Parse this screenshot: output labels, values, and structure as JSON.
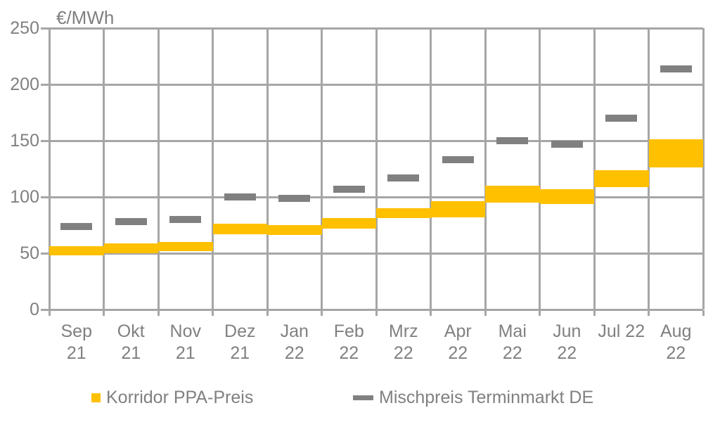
{
  "chart_data": {
    "type": "range-bar",
    "title": "",
    "ylabel": "€/MWh",
    "xlabel": "",
    "ylim": [
      0,
      250
    ],
    "yticks": [
      0,
      50,
      100,
      150,
      200,
      250
    ],
    "grid": true,
    "legend_position": "bottom",
    "categories": [
      "Sep 21",
      "Okt 21",
      "Nov 21",
      "Dez 21",
      "Jan 22",
      "Feb 22",
      "Mrz 22",
      "Apr 22",
      "Mai 22",
      "Jun 22",
      "Jul 22",
      "Aug 22"
    ],
    "category_label_lines": [
      [
        "Sep",
        "21"
      ],
      [
        "Okt",
        "21"
      ],
      [
        "Nov",
        "21"
      ],
      [
        "Dez",
        "21"
      ],
      [
        "Jan",
        "22"
      ],
      [
        "Feb",
        "22"
      ],
      [
        "Mrz",
        "22"
      ],
      [
        "Apr",
        "22"
      ],
      [
        "Mai",
        "22"
      ],
      [
        "Jun",
        "22"
      ],
      [
        "Jul 22"
      ],
      [
        "Aug",
        "22"
      ]
    ],
    "series": [
      {
        "name": "Korridor PPA-Preis",
        "style": "range-band",
        "color": "#FFC000",
        "ranges": [
          [
            48,
            56
          ],
          [
            50,
            59
          ],
          [
            52,
            60
          ],
          [
            67,
            76
          ],
          [
            66,
            75
          ],
          [
            72,
            81
          ],
          [
            81,
            90
          ],
          [
            82,
            96
          ],
          [
            95,
            110
          ],
          [
            94,
            107
          ],
          [
            109,
            124
          ],
          [
            126,
            151
          ]
        ]
      },
      {
        "name": "Mischpreis Terminmarkt DE",
        "style": "dash-marker",
        "color": "#808080",
        "values": [
          74,
          78,
          80,
          100,
          99,
          107,
          117,
          133,
          150,
          147,
          170,
          214
        ]
      }
    ],
    "colors": {
      "grid": "#A6A6A6",
      "axis": "#A6A6A6",
      "text": "#808080",
      "background": "#FFFFFF"
    }
  }
}
